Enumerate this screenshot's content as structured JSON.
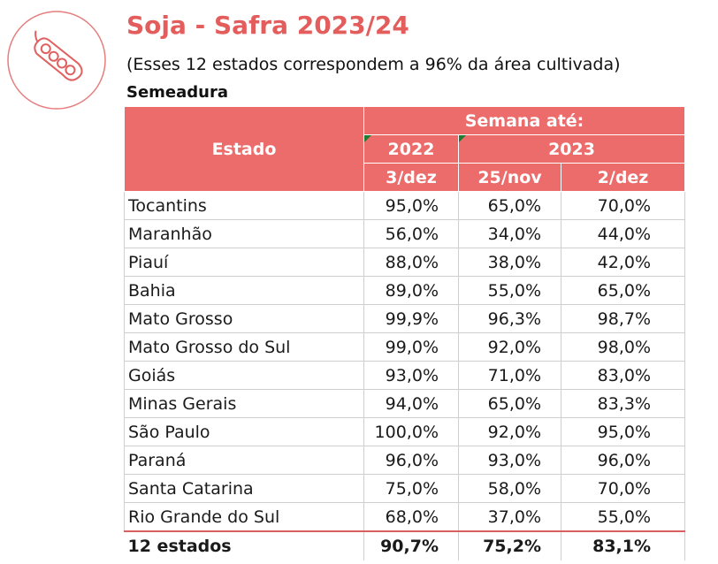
{
  "header": {
    "title": "Soja - Safra 2023/24",
    "subtitle": "(Esses 12 estados correspondem a 96% da área cultivada)",
    "section": "Semeadura",
    "accent_color": "#ec6b6b",
    "logo_icon": "soybean-pod-icon"
  },
  "table": {
    "col_estado": "Estado",
    "group_label": "Semana até:",
    "years": [
      "2022",
      "2023"
    ],
    "dates": [
      "3/dez",
      "25/nov",
      "2/dez"
    ],
    "rows": [
      {
        "estado": "Tocantins",
        "v1": "95,0%",
        "v2": "65,0%",
        "v3": "70,0%"
      },
      {
        "estado": "Maranhão",
        "v1": "56,0%",
        "v2": "34,0%",
        "v3": "44,0%"
      },
      {
        "estado": "Piauí",
        "v1": "88,0%",
        "v2": "38,0%",
        "v3": "42,0%"
      },
      {
        "estado": "Bahia",
        "v1": "89,0%",
        "v2": "55,0%",
        "v3": "65,0%"
      },
      {
        "estado": "Mato Grosso",
        "v1": "99,9%",
        "v2": "96,3%",
        "v3": "98,7%"
      },
      {
        "estado": "Mato Grosso do Sul",
        "v1": "99,0%",
        "v2": "92,0%",
        "v3": "98,0%"
      },
      {
        "estado": "Goiás",
        "v1": "93,0%",
        "v2": "71,0%",
        "v3": "83,0%"
      },
      {
        "estado": "Minas Gerais",
        "v1": "94,0%",
        "v2": "65,0%",
        "v3": "83,3%"
      },
      {
        "estado": "São Paulo",
        "v1": "100,0%",
        "v2": "92,0%",
        "v3": "95,0%"
      },
      {
        "estado": "Paraná",
        "v1": "96,0%",
        "v2": "93,0%",
        "v3": "96,0%"
      },
      {
        "estado": "Santa Catarina",
        "v1": "75,0%",
        "v2": "58,0%",
        "v3": "70,0%"
      },
      {
        "estado": "Rio Grande do Sul",
        "v1": "68,0%",
        "v2": "37,0%",
        "v3": "55,0%"
      }
    ],
    "total": {
      "estado": "12 estados",
      "v1": "90,7%",
      "v2": "75,2%",
      "v3": "83,1%"
    }
  }
}
